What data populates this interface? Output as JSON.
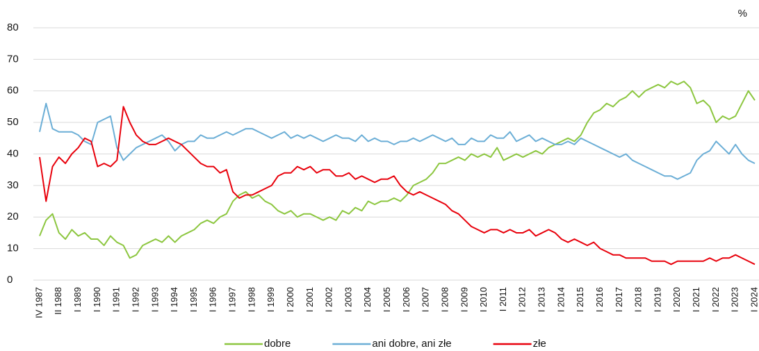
{
  "chart_data": {
    "type": "line",
    "y_label": "%",
    "categories": [
      "IV 1987",
      null,
      null,
      "II 1988",
      null,
      null,
      "I 1989",
      null,
      null,
      "I 1990",
      null,
      null,
      "I 1991",
      null,
      null,
      "I 1992",
      null,
      null,
      "I 1993",
      null,
      null,
      "I 1994",
      null,
      null,
      "I 1995",
      null,
      null,
      "I 1996",
      null,
      null,
      "I 1997",
      null,
      null,
      "I 1998",
      null,
      null,
      "I 1999",
      null,
      null,
      "I 2000",
      null,
      null,
      "I 2001",
      null,
      null,
      "I 2002",
      null,
      null,
      "I 2003",
      null,
      null,
      "I 2004",
      null,
      null,
      "I 2005",
      null,
      null,
      "I 2006",
      null,
      null,
      "I 2007",
      null,
      null,
      "I 2008",
      null,
      null,
      "I 2009",
      null,
      null,
      "I 2010",
      null,
      null,
      "I 2011",
      null,
      null,
      "I 2012",
      null,
      null,
      "I 2013",
      null,
      null,
      "I 2014",
      null,
      null,
      "I 2015",
      null,
      null,
      "I 2016",
      null,
      null,
      "I 2017",
      null,
      null,
      "I 2018",
      null,
      null,
      "I 2019",
      null,
      null,
      "I 2020",
      null,
      null,
      "I 2021",
      null,
      null,
      "I 2022",
      null,
      null,
      "I 2023",
      null,
      null,
      "I 2024"
    ],
    "series": [
      {
        "name": "dobre",
        "color": "#8cc63f",
        "values": [
          14,
          19,
          21,
          15,
          13,
          16,
          14,
          15,
          13,
          13,
          11,
          14,
          12,
          11,
          7,
          8,
          11,
          12,
          13,
          12,
          14,
          12,
          14,
          15,
          16,
          18,
          19,
          18,
          20,
          21,
          25,
          27,
          28,
          26,
          27,
          25,
          24,
          22,
          21,
          22,
          20,
          21,
          21,
          20,
          19,
          20,
          19,
          22,
          21,
          23,
          22,
          25,
          24,
          25,
          25,
          26,
          25,
          27,
          30,
          31,
          32,
          34,
          37,
          37,
          38,
          39,
          38,
          40,
          39,
          40,
          39,
          42,
          38,
          39,
          40,
          39,
          40,
          41,
          40,
          42,
          43,
          44,
          45,
          44,
          46,
          50,
          53,
          54,
          56,
          55,
          57,
          58,
          60,
          58,
          60,
          61,
          62,
          61,
          63,
          62,
          63,
          61,
          56,
          57,
          55,
          50,
          52,
          51,
          52,
          56,
          60,
          57
        ]
      },
      {
        "name": "ani dobre, ani złe",
        "color": "#6baed6",
        "values": [
          47,
          56,
          48,
          47,
          47,
          47,
          46,
          44,
          43,
          50,
          51,
          52,
          42,
          38,
          40,
          42,
          43,
          44,
          45,
          46,
          44,
          41,
          43,
          44,
          44,
          46,
          45,
          45,
          46,
          47,
          46,
          47,
          48,
          48,
          47,
          46,
          45,
          46,
          47,
          45,
          46,
          45,
          46,
          45,
          44,
          45,
          46,
          45,
          45,
          44,
          46,
          44,
          45,
          44,
          44,
          43,
          44,
          44,
          45,
          44,
          45,
          46,
          45,
          44,
          45,
          43,
          43,
          45,
          44,
          44,
          46,
          45,
          45,
          47,
          44,
          45,
          46,
          44,
          45,
          44,
          43,
          43,
          44,
          43,
          45,
          44,
          43,
          42,
          41,
          40,
          39,
          40,
          38,
          37,
          36,
          35,
          34,
          33,
          33,
          32,
          33,
          34,
          38,
          40,
          41,
          44,
          42,
          40,
          43,
          40,
          38,
          37
        ]
      },
      {
        "name": "złe",
        "color": "#e8000b",
        "values": [
          39,
          25,
          36,
          39,
          37,
          40,
          42,
          45,
          44,
          36,
          37,
          36,
          38,
          55,
          50,
          46,
          44,
          43,
          43,
          44,
          45,
          44,
          43,
          41,
          39,
          37,
          36,
          36,
          34,
          35,
          28,
          26,
          27,
          27,
          28,
          29,
          30,
          33,
          34,
          34,
          36,
          35,
          36,
          34,
          35,
          35,
          33,
          33,
          34,
          32,
          33,
          32,
          31,
          32,
          32,
          33,
          30,
          28,
          27,
          28,
          27,
          26,
          25,
          24,
          22,
          21,
          19,
          17,
          16,
          15,
          16,
          16,
          15,
          16,
          15,
          15,
          16,
          14,
          15,
          16,
          15,
          13,
          12,
          13,
          12,
          11,
          12,
          10,
          9,
          8,
          8,
          7,
          7,
          7,
          7,
          6,
          6,
          6,
          5,
          6,
          6,
          6,
          6,
          6,
          7,
          6,
          7,
          7,
          8,
          7,
          6,
          5
        ]
      }
    ],
    "ylim": [
      0,
      80
    ],
    "yticks": [
      0,
      10,
      20,
      30,
      40,
      50,
      60,
      70,
      80
    ],
    "grid": true
  }
}
